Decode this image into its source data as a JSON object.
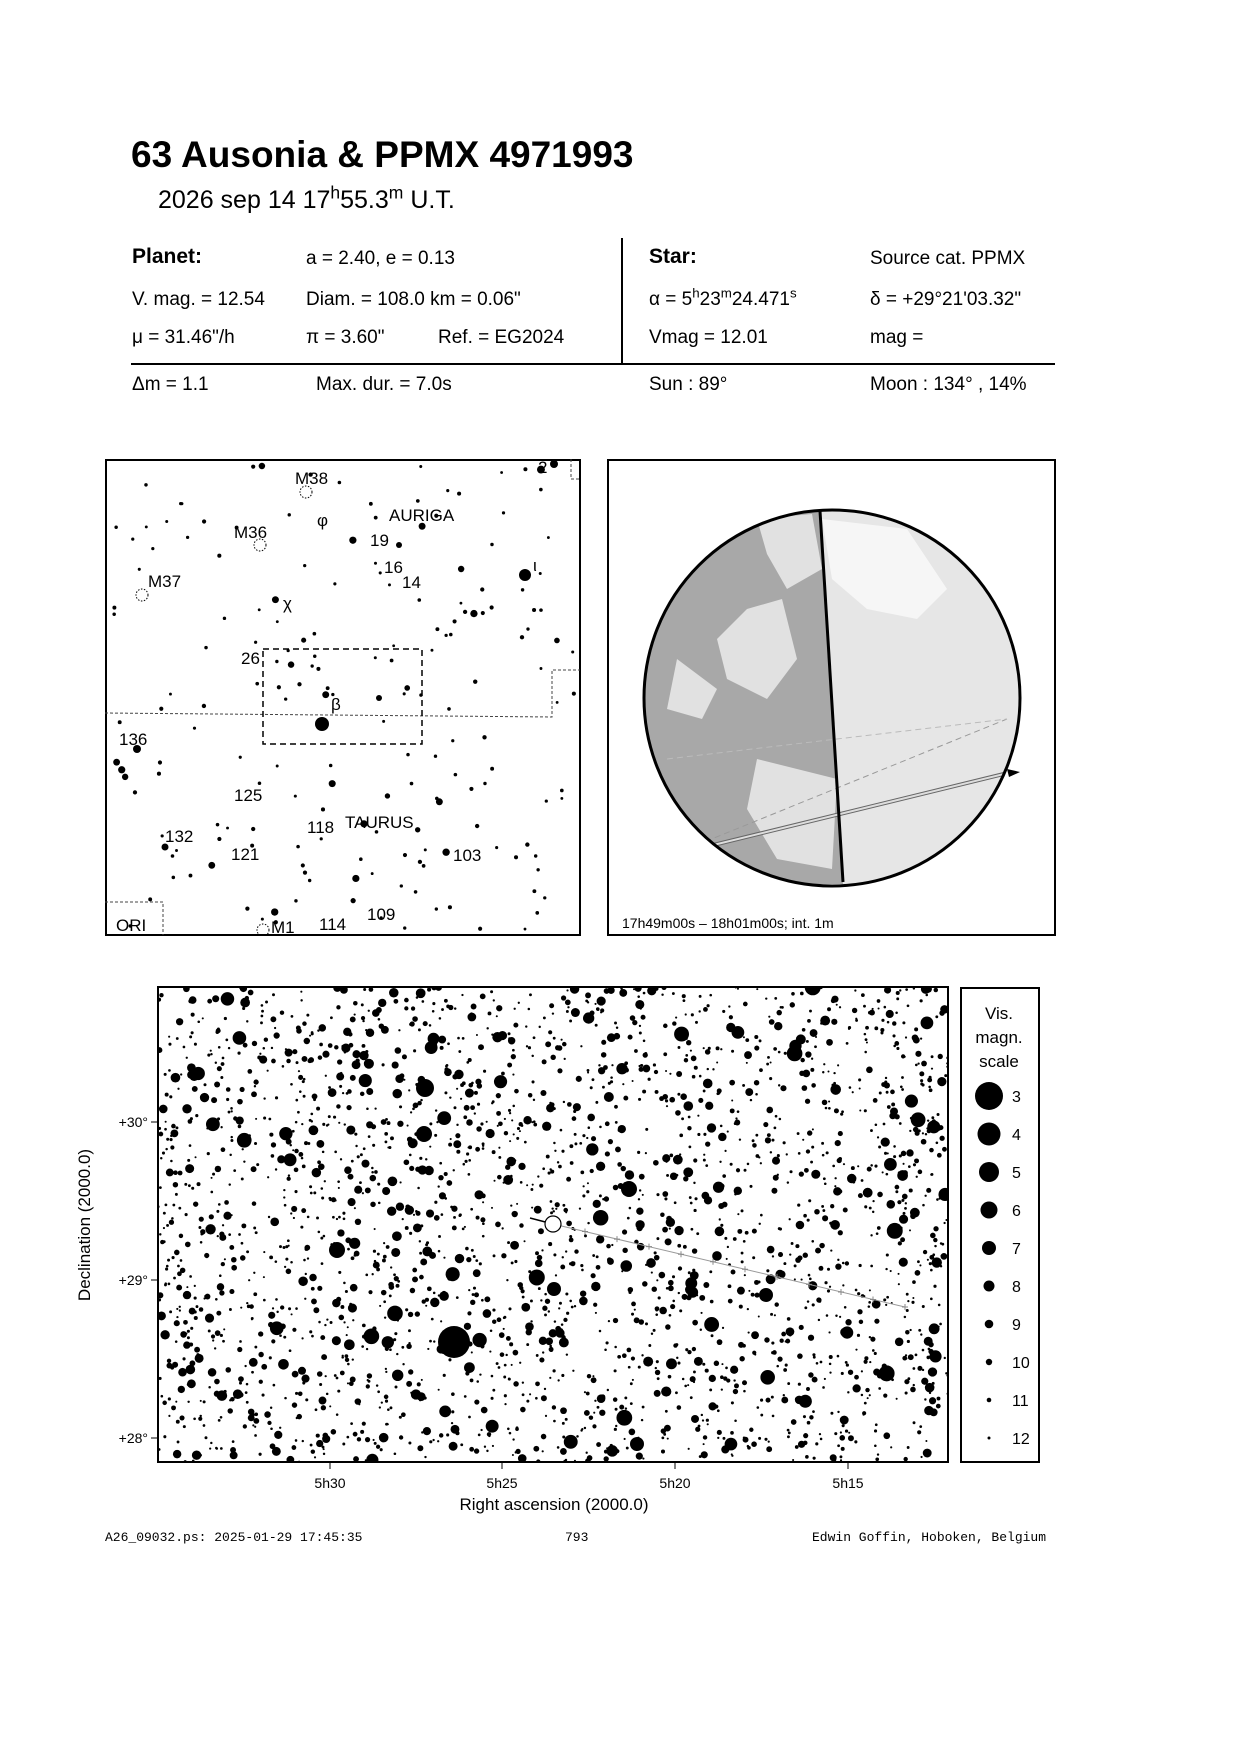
{
  "header": {
    "title": "63 Ausonia  &  PPMX 4971993",
    "date": "2026 sep 14  17",
    "time_h": "h",
    "time_val": "55.3",
    "time_m": "m",
    "time_ut": " U.T."
  },
  "planet": {
    "heading": "Planet:",
    "orbit": "a = 2.40, e = 0.13",
    "vmag": "V. mag. = 12.54",
    "diam": "Diam. = 108.0 km = 0.06\"",
    "mu": "μ =  31.46\"/h",
    "pi": "π =  3.60\"",
    "ref": "Ref. = EG2024"
  },
  "star": {
    "heading": "Star:",
    "source": "Source cat.  PPMX",
    "alpha_pre": "α =  5",
    "alpha_h": "h",
    "alpha_m_val": "23",
    "alpha_m": "m",
    "alpha_s_val": "24.471",
    "alpha_s": "s",
    "delta": "δ = +29°21'03.32\"",
    "vmag": "Vmag = 12.01",
    "mag": " mag ="
  },
  "summary": {
    "dm": "Δm = 1.1",
    "maxdur": "Max. dur. = 7.0s",
    "sun": "Sun :  89°",
    "moon": "Moon : 134° , 14%"
  },
  "finder": {
    "labels": [
      "M38",
      "2",
      "M36",
      "φ",
      "AURIGA",
      "19",
      "16",
      "14",
      "ι",
      "M37",
      "χ",
      "26",
      "β",
      "136",
      "125",
      "118",
      "TAURUS",
      "132",
      "121",
      "103",
      "109",
      "ORI",
      "M1",
      "114"
    ]
  },
  "globe": {
    "caption": "17h49m00s – 18h01m00s; int.  1m"
  },
  "starchart": {
    "x_ticks": [
      "5h30",
      "5h25",
      "5h20",
      "5h15"
    ],
    "y_ticks": [
      "+30°",
      "+29°",
      "+28°"
    ],
    "xlabel": "Right ascension (2000.0)",
    "ylabel": "Declination (2000.0)"
  },
  "scale": {
    "title_lines": [
      "Vis.",
      "magn.",
      "scale"
    ],
    "mags": [
      "3",
      "4",
      "5",
      "6",
      "7",
      "8",
      "9",
      "10",
      "11",
      "12"
    ]
  },
  "footer": {
    "file": "A26_09032.ps: 2025-01-29 17:45:35",
    "page": "793",
    "author": "Edwin Goffin, Hoboken, Belgium"
  }
}
